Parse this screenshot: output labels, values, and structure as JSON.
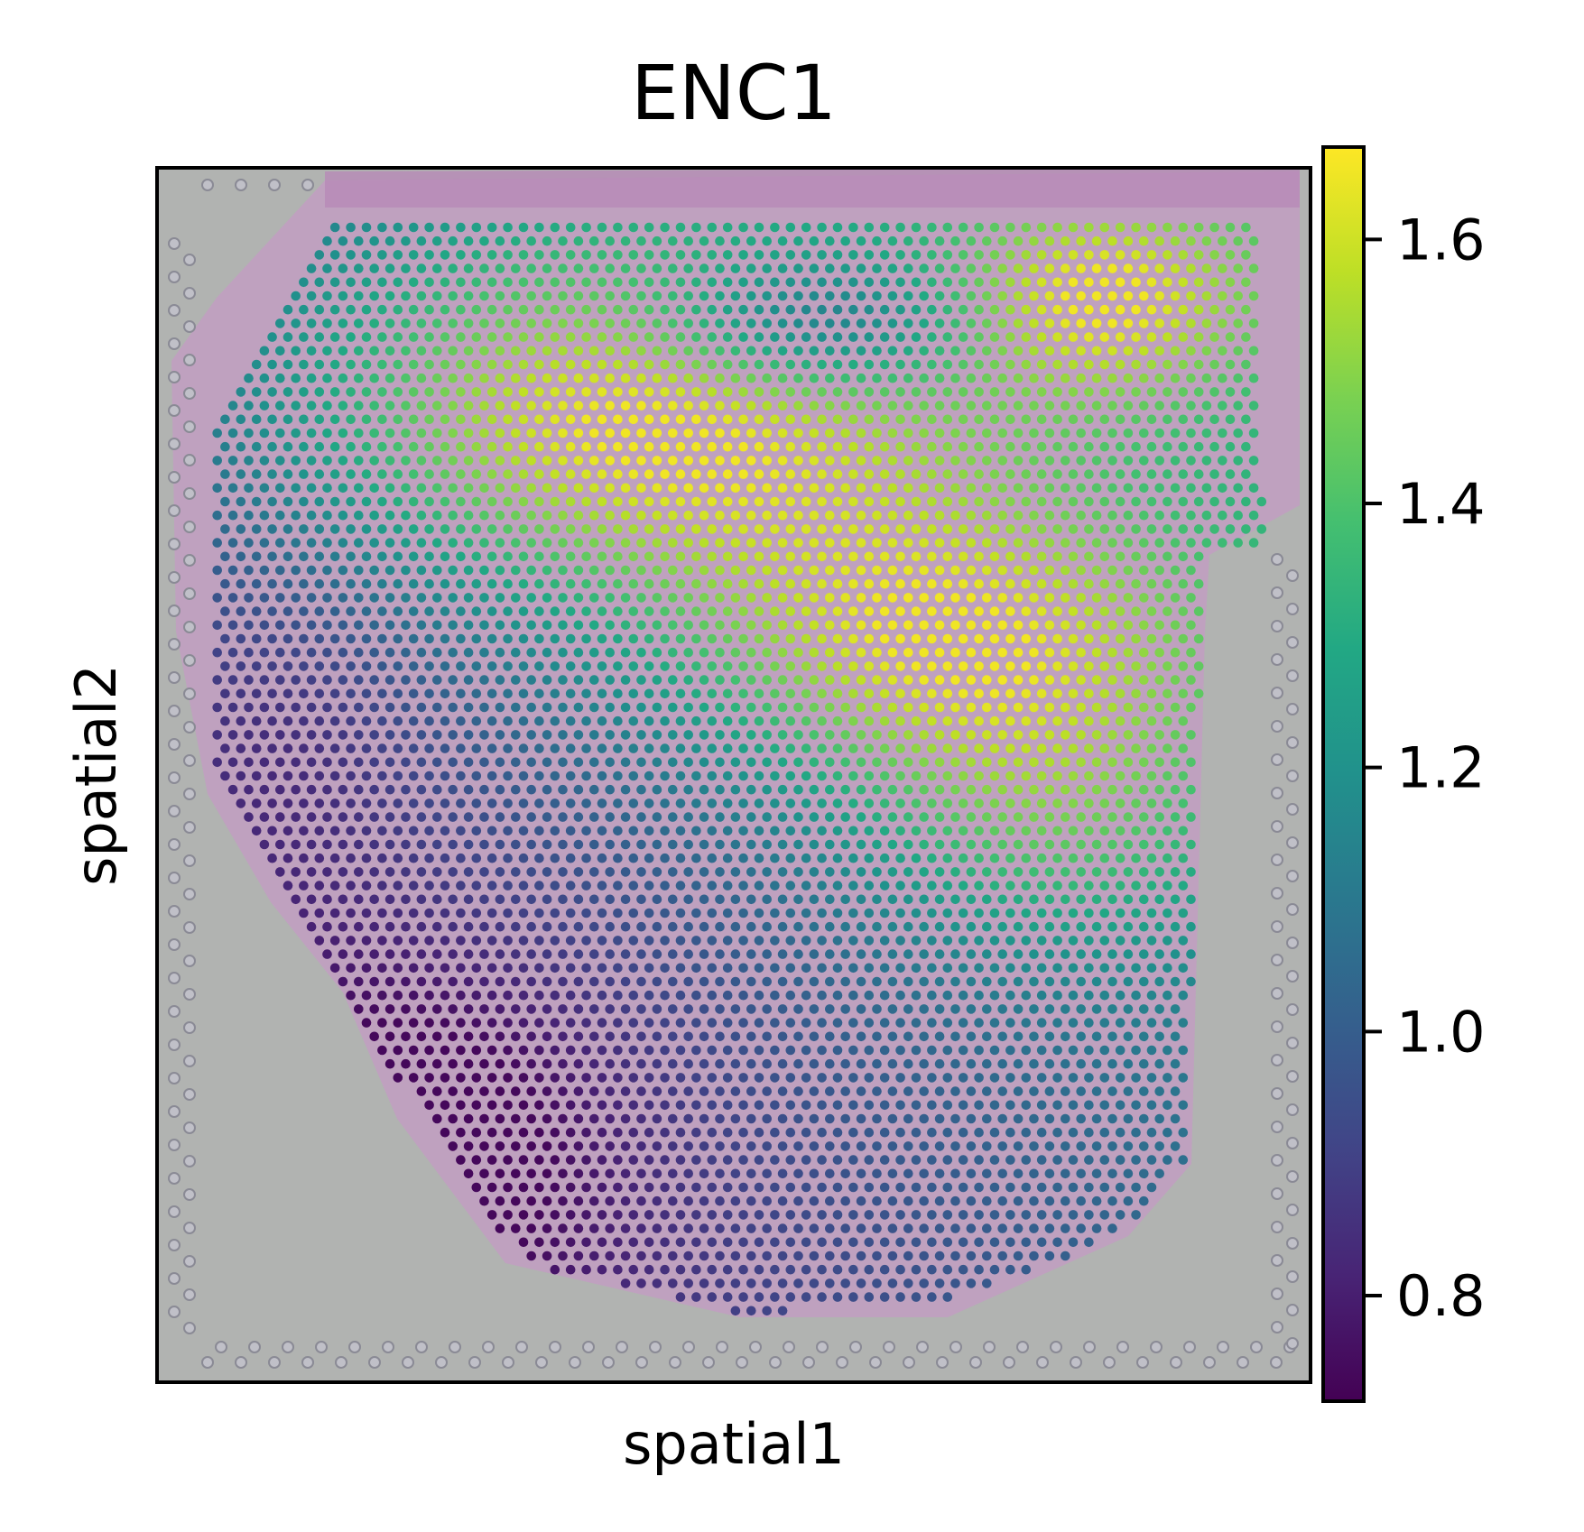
{
  "chart_data": {
    "type": "scatter",
    "title": "ENC1",
    "xlabel": "spatial1",
    "ylabel": "spatial2",
    "colorbar": {
      "colormap": "viridis",
      "vmin": 0.72,
      "vmax": 1.67,
      "ticks": [
        0.8,
        1.0,
        1.2,
        1.4,
        1.6
      ],
      "tick_labels": [
        "0.8",
        "1.0",
        "1.2",
        "1.4",
        "1.6"
      ]
    },
    "x_ticks": [],
    "y_ticks": [],
    "grid": false,
    "background": "H&E tissue image",
    "expression_pattern": {
      "high_region": "upper-left and center-right band",
      "low_region": "lower-left",
      "peak_value": 1.65,
      "min_value": 0.74
    },
    "colors": {
      "tissue_background": "#b1b3b1",
      "tissue_pink": "#c49bc4",
      "viridis_low": "#440154",
      "viridis_high": "#fde725"
    }
  }
}
